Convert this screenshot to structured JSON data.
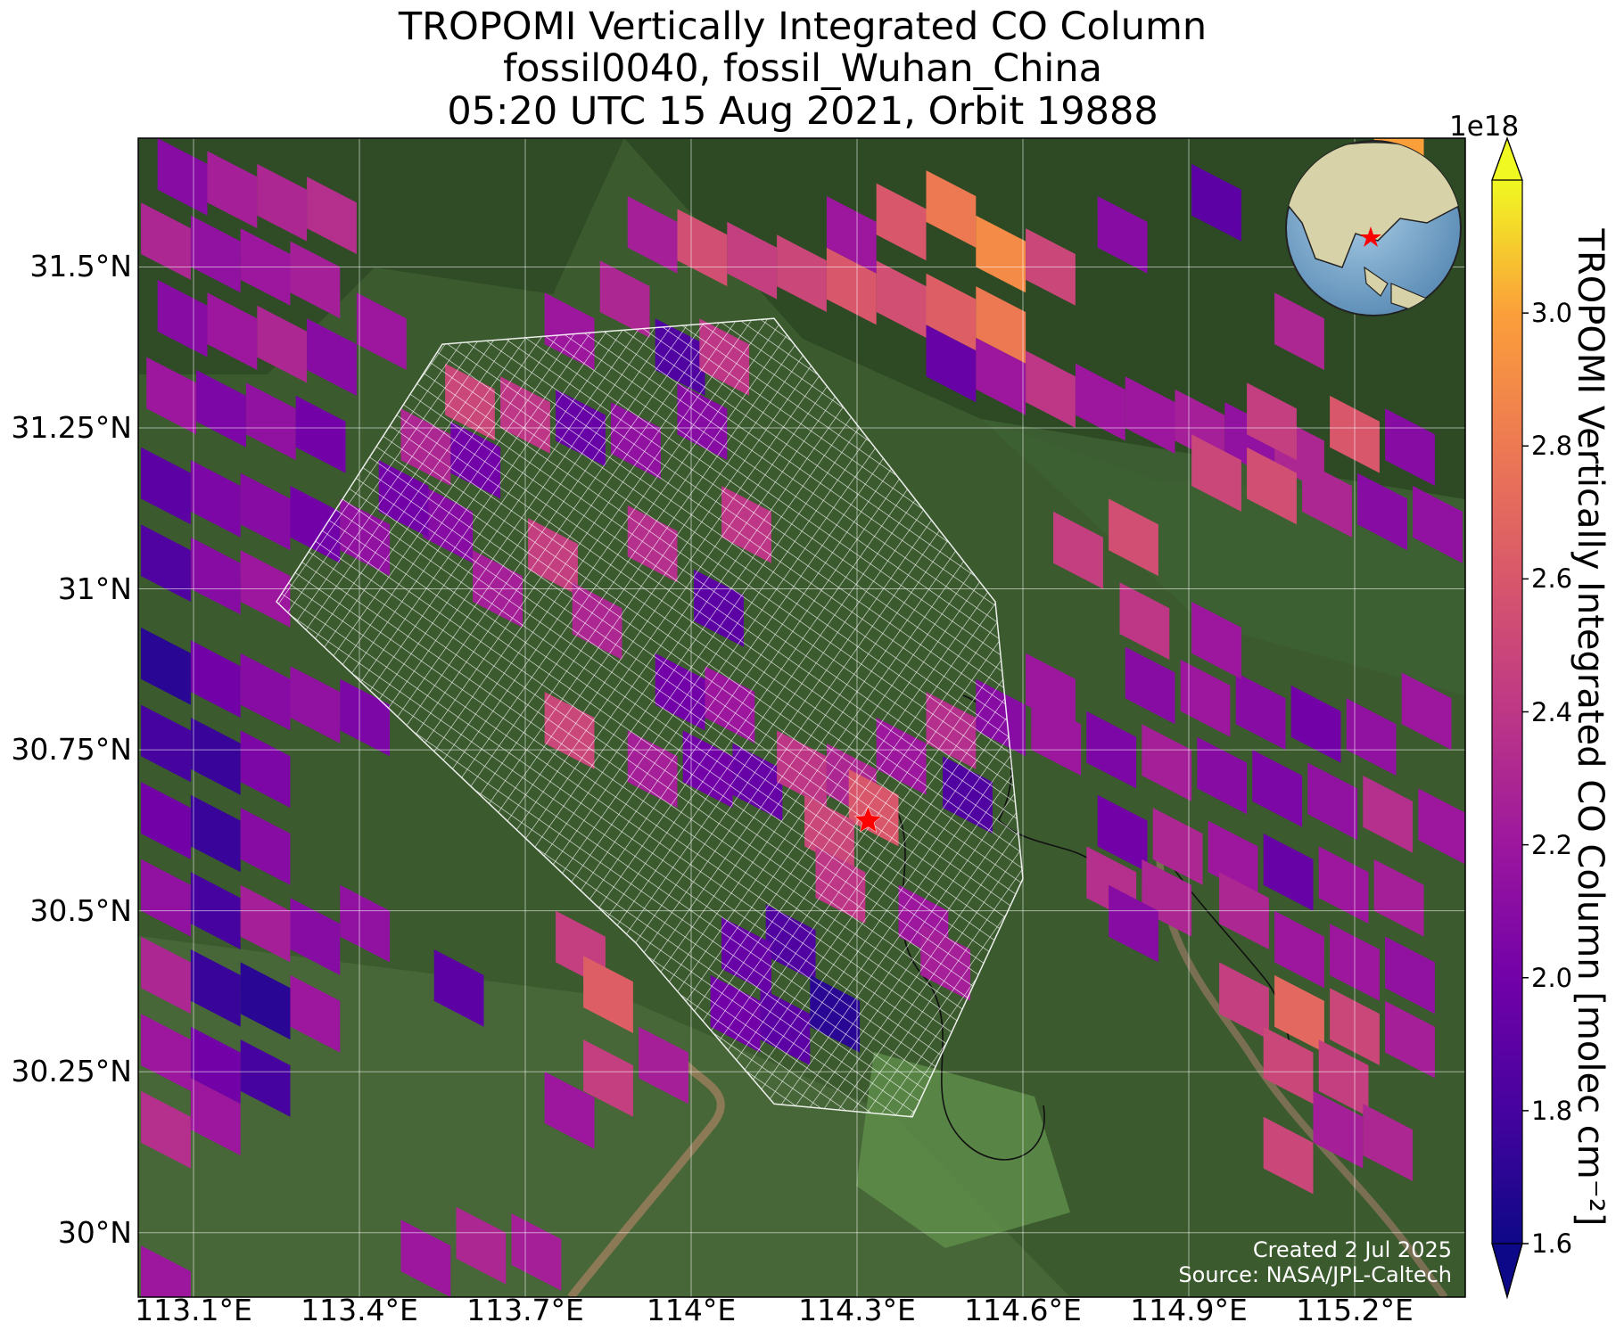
{
  "title": {
    "line1": "TROPOMI Vertically Integrated CO Column",
    "line2": "fossil0040, fossil_Wuhan_China",
    "line3": "05:20 UTC 15 Aug 2021, Orbit 19888"
  },
  "map": {
    "lon_range": [
      113.0,
      115.4
    ],
    "lat_range": [
      29.9,
      31.7
    ],
    "lat_ticks": [
      {
        "value": 31.5,
        "label": "31.5°N"
      },
      {
        "value": 31.25,
        "label": "31.25°N"
      },
      {
        "value": 31.0,
        "label": "31°N"
      },
      {
        "value": 30.75,
        "label": "30.75°N"
      },
      {
        "value": 30.5,
        "label": "30.5°N"
      },
      {
        "value": 30.25,
        "label": "30.25°N"
      },
      {
        "value": 30.0,
        "label": "30°N"
      }
    ],
    "lon_ticks": [
      {
        "value": 113.1,
        "label": "113.1°E"
      },
      {
        "value": 113.4,
        "label": "113.4°E"
      },
      {
        "value": 113.7,
        "label": "113.7°E"
      },
      {
        "value": 114.0,
        "label": "114°E"
      },
      {
        "value": 114.3,
        "label": "114.3°E"
      },
      {
        "value": 114.6,
        "label": "114.6°E"
      },
      {
        "value": 114.9,
        "label": "114.9°E"
      },
      {
        "value": 115.2,
        "label": "115.2°E"
      }
    ],
    "target_marker": {
      "lon": 114.32,
      "lat": 30.64,
      "symbol": "red-star"
    },
    "background": "satellite imagery",
    "grid": true
  },
  "colorbar": {
    "label": "TROPOMI Vertically Integrated CO Column [molec cm⁻²]",
    "exponent": "1e18",
    "min": 1.6,
    "max": 3.2,
    "extend": "both",
    "ticks": [
      "1.6",
      "1.8",
      "2.0",
      "2.2",
      "2.4",
      "2.6",
      "2.8",
      "3.0"
    ],
    "colormap": "plasma"
  },
  "credits": {
    "created": "Created 2 Jul 2025",
    "source": "Source: NASA/JPL-Caltech"
  },
  "inset": {
    "type": "globe",
    "marker": "red-star"
  },
  "colors": {
    "low": "#0d0887",
    "mid": "#cc4778",
    "high": "#f0f921",
    "marker": "#ff0000",
    "target_grid": "#ffffff"
  },
  "chart_data": {
    "type": "heatmap",
    "xlabel": "",
    "ylabel": "",
    "units": "molec cm⁻² (×1e18)",
    "pixels": [
      {
        "lon": 113.08,
        "lat": 31.64,
        "value": 2.1
      },
      {
        "lon": 113.17,
        "lat": 31.62,
        "value": 2.25
      },
      {
        "lon": 113.26,
        "lat": 31.6,
        "value": 2.3
      },
      {
        "lon": 113.35,
        "lat": 31.58,
        "value": 2.35
      },
      {
        "lon": 113.05,
        "lat": 31.54,
        "value": 2.3
      },
      {
        "lon": 113.14,
        "lat": 31.52,
        "value": 2.15
      },
      {
        "lon": 113.23,
        "lat": 31.5,
        "value": 2.2
      },
      {
        "lon": 113.32,
        "lat": 31.48,
        "value": 2.25
      },
      {
        "lon": 113.08,
        "lat": 31.42,
        "value": 2.1
      },
      {
        "lon": 113.17,
        "lat": 31.4,
        "value": 2.2
      },
      {
        "lon": 113.26,
        "lat": 31.38,
        "value": 2.3
      },
      {
        "lon": 113.35,
        "lat": 31.36,
        "value": 2.1
      },
      {
        "lon": 113.44,
        "lat": 31.4,
        "value": 2.2
      },
      {
        "lon": 113.06,
        "lat": 31.3,
        "value": 2.2
      },
      {
        "lon": 113.15,
        "lat": 31.28,
        "value": 2.05
      },
      {
        "lon": 113.24,
        "lat": 31.26,
        "value": 2.15
      },
      {
        "lon": 113.33,
        "lat": 31.24,
        "value": 2.0
      },
      {
        "lon": 113.05,
        "lat": 31.16,
        "value": 1.9
      },
      {
        "lon": 113.14,
        "lat": 31.14,
        "value": 2.05
      },
      {
        "lon": 113.23,
        "lat": 31.12,
        "value": 2.1
      },
      {
        "lon": 113.32,
        "lat": 31.1,
        "value": 2.0
      },
      {
        "lon": 113.41,
        "lat": 31.08,
        "value": 2.15
      },
      {
        "lon": 113.05,
        "lat": 31.04,
        "value": 1.85
      },
      {
        "lon": 113.14,
        "lat": 31.02,
        "value": 2.1
      },
      {
        "lon": 113.23,
        "lat": 31.0,
        "value": 2.2
      },
      {
        "lon": 113.52,
        "lat": 31.22,
        "value": 2.3
      },
      {
        "lon": 113.61,
        "lat": 31.2,
        "value": 2.0
      },
      {
        "lon": 113.56,
        "lat": 31.1,
        "value": 2.1
      },
      {
        "lon": 113.48,
        "lat": 31.14,
        "value": 2.0
      },
      {
        "lon": 113.05,
        "lat": 30.88,
        "value": 1.7
      },
      {
        "lon": 113.14,
        "lat": 30.86,
        "value": 2.0
      },
      {
        "lon": 113.23,
        "lat": 30.84,
        "value": 2.1
      },
      {
        "lon": 113.32,
        "lat": 30.82,
        "value": 2.15
      },
      {
        "lon": 113.41,
        "lat": 30.8,
        "value": 2.05
      },
      {
        "lon": 113.05,
        "lat": 30.76,
        "value": 1.8
      },
      {
        "lon": 113.14,
        "lat": 30.74,
        "value": 1.75
      },
      {
        "lon": 113.23,
        "lat": 30.72,
        "value": 2.05
      },
      {
        "lon": 113.05,
        "lat": 30.64,
        "value": 2.0
      },
      {
        "lon": 113.14,
        "lat": 30.62,
        "value": 1.75
      },
      {
        "lon": 113.23,
        "lat": 30.6,
        "value": 2.1
      },
      {
        "lon": 113.05,
        "lat": 30.52,
        "value": 2.15
      },
      {
        "lon": 113.14,
        "lat": 30.5,
        "value": 1.8
      },
      {
        "lon": 113.23,
        "lat": 30.48,
        "value": 2.25
      },
      {
        "lon": 113.32,
        "lat": 30.46,
        "value": 2.1
      },
      {
        "lon": 113.41,
        "lat": 30.48,
        "value": 2.15
      },
      {
        "lon": 113.05,
        "lat": 30.4,
        "value": 2.3
      },
      {
        "lon": 113.14,
        "lat": 30.38,
        "value": 1.75
      },
      {
        "lon": 113.23,
        "lat": 30.36,
        "value": 1.7
      },
      {
        "lon": 113.32,
        "lat": 30.34,
        "value": 2.2
      },
      {
        "lon": 113.05,
        "lat": 30.28,
        "value": 2.2
      },
      {
        "lon": 113.14,
        "lat": 30.26,
        "value": 2.0
      },
      {
        "lon": 113.23,
        "lat": 30.24,
        "value": 1.8
      },
      {
        "lon": 113.05,
        "lat": 30.16,
        "value": 2.35
      },
      {
        "lon": 113.14,
        "lat": 30.18,
        "value": 2.2
      },
      {
        "lon": 113.58,
        "lat": 30.38,
        "value": 1.9
      },
      {
        "lon": 113.6,
        "lat": 31.29,
        "value": 2.5
      },
      {
        "lon": 113.7,
        "lat": 31.27,
        "value": 2.4
      },
      {
        "lon": 113.8,
        "lat": 31.25,
        "value": 1.95
      },
      {
        "lon": 113.9,
        "lat": 31.23,
        "value": 2.15
      },
      {
        "lon": 113.78,
        "lat": 31.4,
        "value": 2.2
      },
      {
        "lon": 113.88,
        "lat": 31.45,
        "value": 2.3
      },
      {
        "lon": 113.98,
        "lat": 31.36,
        "value": 1.85
      },
      {
        "lon": 114.06,
        "lat": 31.36,
        "value": 2.4
      },
      {
        "lon": 114.02,
        "lat": 31.26,
        "value": 2.1
      },
      {
        "lon": 113.93,
        "lat": 31.55,
        "value": 2.25
      },
      {
        "lon": 114.02,
        "lat": 31.53,
        "value": 2.55
      },
      {
        "lon": 114.11,
        "lat": 31.51,
        "value": 2.45
      },
      {
        "lon": 114.2,
        "lat": 31.49,
        "value": 2.5
      },
      {
        "lon": 114.29,
        "lat": 31.47,
        "value": 2.6
      },
      {
        "lon": 114.38,
        "lat": 31.45,
        "value": 2.55
      },
      {
        "lon": 114.47,
        "lat": 31.43,
        "value": 2.65
      },
      {
        "lon": 114.56,
        "lat": 31.41,
        "value": 2.8
      },
      {
        "lon": 114.29,
        "lat": 31.55,
        "value": 2.2
      },
      {
        "lon": 114.38,
        "lat": 31.57,
        "value": 2.6
      },
      {
        "lon": 114.47,
        "lat": 31.59,
        "value": 2.8
      },
      {
        "lon": 114.56,
        "lat": 31.52,
        "value": 2.9
      },
      {
        "lon": 114.65,
        "lat": 31.5,
        "value": 2.5
      },
      {
        "lon": 114.47,
        "lat": 31.35,
        "value": 1.95
      },
      {
        "lon": 114.56,
        "lat": 31.33,
        "value": 2.2
      },
      {
        "lon": 114.65,
        "lat": 31.31,
        "value": 2.4
      },
      {
        "lon": 114.74,
        "lat": 31.29,
        "value": 2.2
      },
      {
        "lon": 114.83,
        "lat": 31.27,
        "value": 2.2
      },
      {
        "lon": 114.92,
        "lat": 31.25,
        "value": 2.25
      },
      {
        "lon": 115.01,
        "lat": 31.23,
        "value": 2.15
      },
      {
        "lon": 115.1,
        "lat": 31.21,
        "value": 2.3
      },
      {
        "lon": 114.78,
        "lat": 31.55,
        "value": 2.1
      },
      {
        "lon": 114.95,
        "lat": 31.6,
        "value": 1.9
      },
      {
        "lon": 115.1,
        "lat": 31.4,
        "value": 2.3
      },
      {
        "lon": 113.93,
        "lat": 31.07,
        "value": 2.35
      },
      {
        "lon": 113.75,
        "lat": 31.05,
        "value": 2.45
      },
      {
        "lon": 113.83,
        "lat": 30.95,
        "value": 2.3
      },
      {
        "lon": 113.65,
        "lat": 31.0,
        "value": 2.25
      },
      {
        "lon": 114.05,
        "lat": 30.97,
        "value": 1.9
      },
      {
        "lon": 114.1,
        "lat": 31.1,
        "value": 2.4
      },
      {
        "lon": 113.98,
        "lat": 30.84,
        "value": 2.0
      },
      {
        "lon": 114.07,
        "lat": 30.82,
        "value": 2.2
      },
      {
        "lon": 114.03,
        "lat": 30.72,
        "value": 2.0
      },
      {
        "lon": 114.12,
        "lat": 30.7,
        "value": 1.95
      },
      {
        "lon": 113.93,
        "lat": 30.72,
        "value": 2.25
      },
      {
        "lon": 113.78,
        "lat": 30.78,
        "value": 2.5
      },
      {
        "lon": 114.2,
        "lat": 30.72,
        "value": 2.4
      },
      {
        "lon": 114.29,
        "lat": 30.7,
        "value": 2.3
      },
      {
        "lon": 114.38,
        "lat": 30.74,
        "value": 2.2
      },
      {
        "lon": 114.47,
        "lat": 30.78,
        "value": 2.35
      },
      {
        "lon": 114.56,
        "lat": 30.8,
        "value": 2.1
      },
      {
        "lon": 114.65,
        "lat": 30.84,
        "value": 2.2
      },
      {
        "lon": 114.33,
        "lat": 30.66,
        "value": 2.6
      },
      {
        "lon": 114.25,
        "lat": 30.62,
        "value": 2.5
      },
      {
        "lon": 114.27,
        "lat": 30.54,
        "value": 2.4
      },
      {
        "lon": 114.18,
        "lat": 30.45,
        "value": 1.85
      },
      {
        "lon": 114.1,
        "lat": 30.43,
        "value": 1.95
      },
      {
        "lon": 114.17,
        "lat": 30.32,
        "value": 1.9
      },
      {
        "lon": 114.26,
        "lat": 30.34,
        "value": 1.7
      },
      {
        "lon": 114.08,
        "lat": 30.34,
        "value": 2.0
      },
      {
        "lon": 114.42,
        "lat": 30.48,
        "value": 2.2
      },
      {
        "lon": 114.46,
        "lat": 30.42,
        "value": 2.25
      },
      {
        "lon": 114.5,
        "lat": 30.68,
        "value": 1.85
      },
      {
        "lon": 113.8,
        "lat": 30.44,
        "value": 2.45
      },
      {
        "lon": 113.85,
        "lat": 30.37,
        "value": 2.65
      },
      {
        "lon": 113.85,
        "lat": 30.24,
        "value": 2.45
      },
      {
        "lon": 113.95,
        "lat": 30.26,
        "value": 2.25
      },
      {
        "lon": 113.78,
        "lat": 30.19,
        "value": 2.2
      },
      {
        "lon": 114.66,
        "lat": 30.77,
        "value": 2.2
      },
      {
        "lon": 114.76,
        "lat": 30.75,
        "value": 2.05
      },
      {
        "lon": 114.86,
        "lat": 30.73,
        "value": 2.25
      },
      {
        "lon": 114.96,
        "lat": 30.71,
        "value": 2.1
      },
      {
        "lon": 115.06,
        "lat": 30.69,
        "value": 2.05
      },
      {
        "lon": 115.16,
        "lat": 30.67,
        "value": 2.15
      },
      {
        "lon": 115.26,
        "lat": 30.65,
        "value": 2.35
      },
      {
        "lon": 115.36,
        "lat": 30.63,
        "value": 2.2
      },
      {
        "lon": 114.78,
        "lat": 30.62,
        "value": 2.0
      },
      {
        "lon": 114.88,
        "lat": 30.6,
        "value": 2.3
      },
      {
        "lon": 114.98,
        "lat": 30.58,
        "value": 2.2
      },
      {
        "lon": 115.08,
        "lat": 30.56,
        "value": 1.95
      },
      {
        "lon": 115.18,
        "lat": 30.54,
        "value": 2.2
      },
      {
        "lon": 115.28,
        "lat": 30.52,
        "value": 2.25
      },
      {
        "lon": 114.83,
        "lat": 30.85,
        "value": 2.1
      },
      {
        "lon": 114.93,
        "lat": 30.83,
        "value": 2.2
      },
      {
        "lon": 115.03,
        "lat": 30.81,
        "value": 2.1
      },
      {
        "lon": 115.13,
        "lat": 30.79,
        "value": 2.0
      },
      {
        "lon": 115.23,
        "lat": 30.77,
        "value": 2.15
      },
      {
        "lon": 115.33,
        "lat": 30.81,
        "value": 2.2
      },
      {
        "lon": 114.82,
        "lat": 30.95,
        "value": 2.4
      },
      {
        "lon": 114.95,
        "lat": 30.92,
        "value": 2.2
      },
      {
        "lon": 114.76,
        "lat": 30.54,
        "value": 2.35
      },
      {
        "lon": 114.86,
        "lat": 30.52,
        "value": 2.3
      },
      {
        "lon": 114.8,
        "lat": 30.48,
        "value": 2.1
      },
      {
        "lon": 115.0,
        "lat": 30.5,
        "value": 2.3
      },
      {
        "lon": 115.1,
        "lat": 30.44,
        "value": 2.2
      },
      {
        "lon": 115.2,
        "lat": 30.42,
        "value": 2.2
      },
      {
        "lon": 115.3,
        "lat": 30.4,
        "value": 2.15
      },
      {
        "lon": 115.0,
        "lat": 30.36,
        "value": 2.45
      },
      {
        "lon": 115.1,
        "lat": 30.34,
        "value": 2.7
      },
      {
        "lon": 115.2,
        "lat": 30.32,
        "value": 2.5
      },
      {
        "lon": 115.3,
        "lat": 30.3,
        "value": 2.25
      },
      {
        "lon": 115.08,
        "lat": 30.26,
        "value": 2.5
      },
      {
        "lon": 115.18,
        "lat": 30.24,
        "value": 2.45
      },
      {
        "lon": 115.08,
        "lat": 30.12,
        "value": 2.5
      },
      {
        "lon": 115.17,
        "lat": 30.16,
        "value": 2.25
      },
      {
        "lon": 115.26,
        "lat": 30.14,
        "value": 2.3
      },
      {
        "lon": 114.95,
        "lat": 31.18,
        "value": 2.5
      },
      {
        "lon": 115.05,
        "lat": 31.16,
        "value": 2.55
      },
      {
        "lon": 115.15,
        "lat": 31.14,
        "value": 2.3
      },
      {
        "lon": 115.25,
        "lat": 31.12,
        "value": 2.1
      },
      {
        "lon": 115.35,
        "lat": 31.1,
        "value": 2.15
      },
      {
        "lon": 115.05,
        "lat": 31.26,
        "value": 2.45
      },
      {
        "lon": 115.2,
        "lat": 31.24,
        "value": 2.6
      },
      {
        "lon": 115.3,
        "lat": 31.22,
        "value": 2.1
      },
      {
        "lon": 114.7,
        "lat": 31.06,
        "value": 2.45
      },
      {
        "lon": 114.8,
        "lat": 31.08,
        "value": 2.55
      },
      {
        "lon": 115.28,
        "lat": 31.7,
        "value": 3.0
      },
      {
        "lon": 113.62,
        "lat": 29.98,
        "value": 2.3
      },
      {
        "lon": 113.72,
        "lat": 29.97,
        "value": 2.25
      },
      {
        "lon": 113.52,
        "lat": 29.96,
        "value": 2.2
      },
      {
        "lon": 113.05,
        "lat": 29.92,
        "value": 2.2
      }
    ],
    "target_grid_region": [
      [
        113.25,
        30.98
      ],
      [
        113.55,
        31.38
      ],
      [
        114.15,
        31.42
      ],
      [
        114.55,
        30.98
      ],
      [
        114.6,
        30.55
      ],
      [
        114.4,
        30.18
      ],
      [
        114.15,
        30.2
      ],
      [
        113.9,
        30.45
      ]
    ]
  }
}
